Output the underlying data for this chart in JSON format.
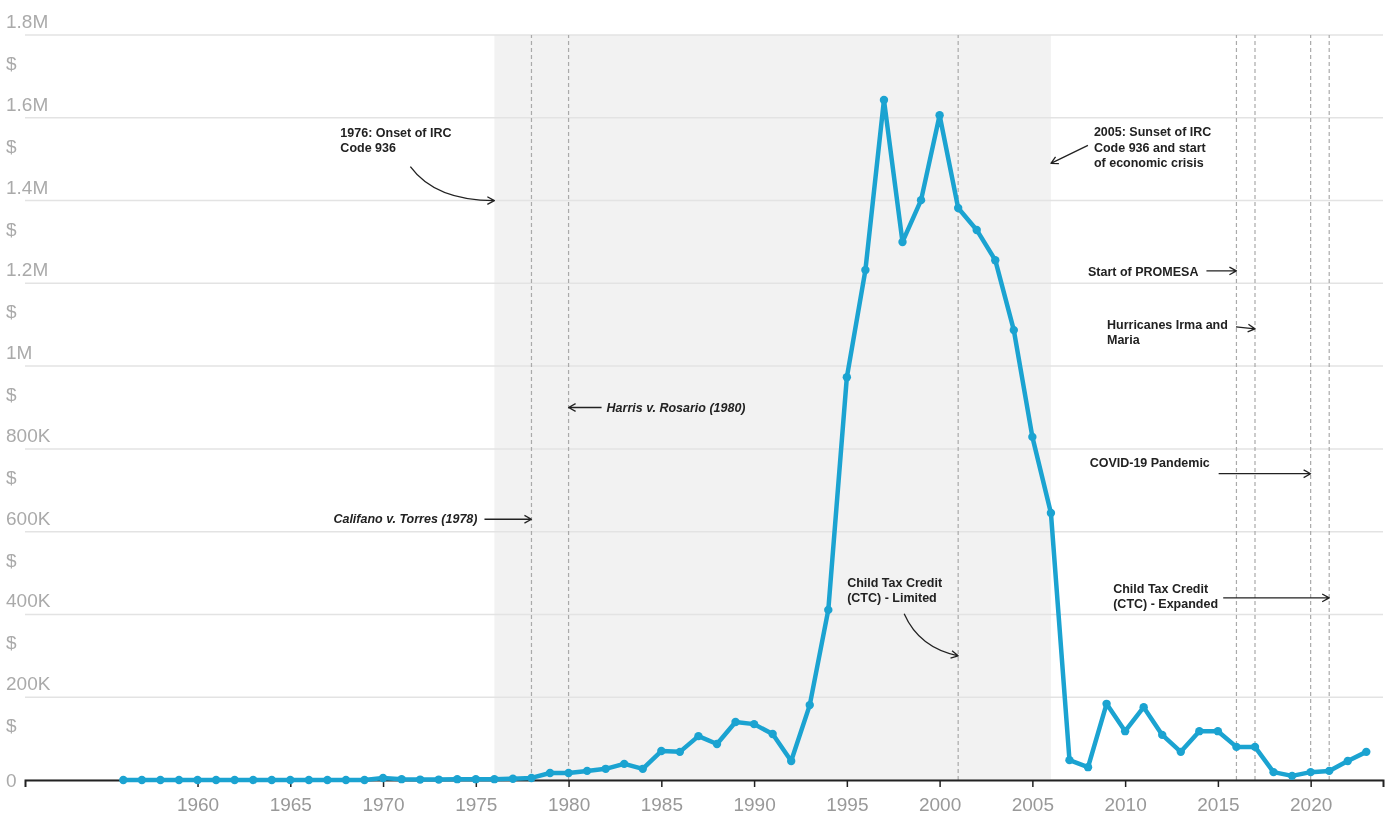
{
  "chart_data": {
    "type": "line",
    "x": [
      1956,
      1957,
      1958,
      1959,
      1960,
      1961,
      1962,
      1963,
      1964,
      1965,
      1966,
      1967,
      1968,
      1969,
      1970,
      1971,
      1972,
      1973,
      1974,
      1975,
      1976,
      1977,
      1978,
      1979,
      1980,
      1981,
      1982,
      1983,
      1984,
      1985,
      1986,
      1987,
      1988,
      1989,
      1990,
      1991,
      1992,
      1993,
      1994,
      1995,
      1996,
      1997,
      1998,
      1999,
      2000,
      2001,
      2002,
      2003,
      2004,
      2005,
      2006,
      2007,
      2008,
      2009,
      2010,
      2011,
      2012,
      2013,
      2014,
      2015,
      2016,
      2017,
      2018,
      2019,
      2020,
      2021,
      2022,
      2023
    ],
    "series": [
      {
        "color": "#1ba3d1",
        "values": [
          0,
          0,
          0,
          0,
          0,
          0,
          0,
          0,
          0,
          0,
          0,
          0,
          0,
          0,
          5000,
          2000,
          1000,
          1000,
          2000,
          2000,
          2000,
          3000,
          5000,
          17000,
          17000,
          22000,
          27000,
          39000,
          27000,
          70000,
          68000,
          106000,
          87000,
          140000,
          135000,
          111000,
          46000,
          181000,
          411000,
          973000,
          1232000,
          1643000,
          1300000,
          1401000,
          1606000,
          1382000,
          1329000,
          1256000,
          1087000,
          829000,
          645000,
          48000,
          31000,
          184000,
          118000,
          176000,
          109000,
          68000,
          118000,
          118000,
          80000,
          80000,
          19000,
          10000,
          19000,
          22000,
          46000,
          68000
        ]
      }
    ],
    "xlim": [
      1950.7,
      2023.9
    ],
    "ylim": [
      0,
      1800000
    ],
    "xticks": [
      1960,
      1965,
      1970,
      1975,
      1980,
      1985,
      1990,
      1995,
      2000,
      2005,
      2010,
      2015,
      2020
    ],
    "yticks": [
      {
        "value": 0,
        "label": "0"
      },
      {
        "value": 200000,
        "label": "200K $"
      },
      {
        "value": 400000,
        "label": "400K $"
      },
      {
        "value": 600000,
        "label": "600K $"
      },
      {
        "value": 800000,
        "label": "800K $"
      },
      {
        "value": 1000000,
        "label": "1M $"
      },
      {
        "value": 1200000,
        "label": "1.2M $"
      },
      {
        "value": 1400000,
        "label": "1.4M $"
      },
      {
        "value": 1600000,
        "label": "1.6M $"
      },
      {
        "value": 1800000,
        "label": "1.8M $"
      }
    ],
    "grid": "y",
    "marker": "circle",
    "line_style": "solid",
    "bands": [
      {
        "axis": "x",
        "from": 1976,
        "to": 2006,
        "color": "#f2f2f2"
      }
    ],
    "ref_lines": [
      {
        "axis": "x",
        "value": 1978,
        "line_style": "dashed"
      },
      {
        "axis": "x",
        "value": 1980,
        "line_style": "dashed"
      },
      {
        "axis": "x",
        "value": 2001,
        "line_style": "dashed"
      },
      {
        "axis": "x",
        "value": 2016,
        "line_style": "dashed"
      },
      {
        "axis": "x",
        "value": 2017,
        "line_style": "dashed"
      },
      {
        "axis": "x",
        "value": 2020,
        "line_style": "dashed"
      },
      {
        "axis": "x",
        "value": 2021,
        "line_style": "dashed"
      }
    ],
    "annotations": [
      {
        "text": "1976: Onset of IRC Code 936",
        "x": 1976,
        "y": 1400000
      },
      {
        "text": "Harris v. Rosario (1980)",
        "x": 1980,
        "y": 900000
      },
      {
        "text": "Califano v. Torres (1978)",
        "x": 1978,
        "y": 630000
      },
      {
        "text": "Child Tax Credit (CTC) - Limited",
        "x": 2001,
        "y": 300000
      },
      {
        "text": "2005: Sunset of IRC Code 936 and start of economic crisis",
        "x": 2006,
        "y": 1490000
      },
      {
        "text": "Start of PROMESA",
        "x": 2016,
        "y": 1230000
      },
      {
        "text": "Hurricanes Irma and Maria",
        "x": 2017,
        "y": 1090000
      },
      {
        "text": "COVID-19 Pandemic",
        "x": 2020,
        "y": 740000
      },
      {
        "text": "Child Tax Credit (CTC) - Expanded",
        "x": 2021,
        "y": 440000
      }
    ]
  }
}
